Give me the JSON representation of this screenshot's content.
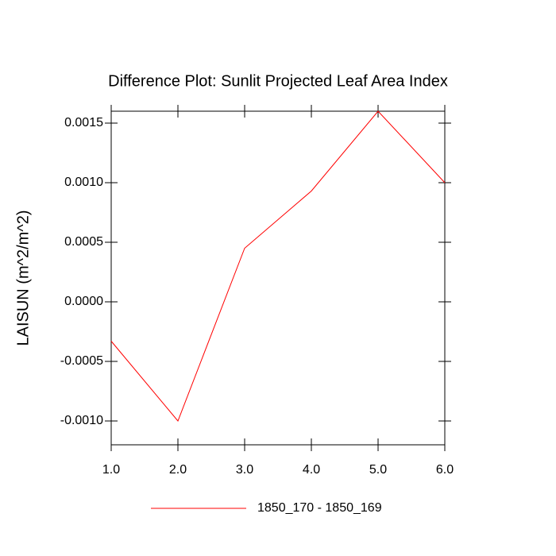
{
  "chart_data": {
    "type": "line",
    "title": "Difference Plot: Sunlit Projected Leaf Area Index",
    "ylabel": "LAISUN  (m^2/m^2)",
    "x": [
      1,
      2,
      3,
      4,
      5,
      6
    ],
    "series": [
      {
        "name": "1850_170 - 1850_169",
        "color": "#ff0000",
        "values": [
          -0.00033,
          -0.001,
          0.00045,
          0.00093,
          0.0016,
          0.001
        ]
      }
    ],
    "xlim": [
      1,
      6
    ],
    "xticks": [
      {
        "value": 1,
        "label": "1.0"
      },
      {
        "value": 2,
        "label": "2.0"
      },
      {
        "value": 3,
        "label": "3.0"
      },
      {
        "value": 4,
        "label": "4.0"
      },
      {
        "value": 5,
        "label": "5.0"
      },
      {
        "value": 6,
        "label": "6.0"
      }
    ],
    "ylim": [
      -0.0012,
      0.0016
    ],
    "yticks": [
      {
        "value": -0.001,
        "label": "-0.0010"
      },
      -0.0005,
      {
        "value": 0,
        "label": "0.0000"
      },
      0.0005,
      {
        "value": 0.001,
        "label": "0.0010"
      },
      0.0015
    ],
    "grid": false,
    "legend": "bottom"
  }
}
